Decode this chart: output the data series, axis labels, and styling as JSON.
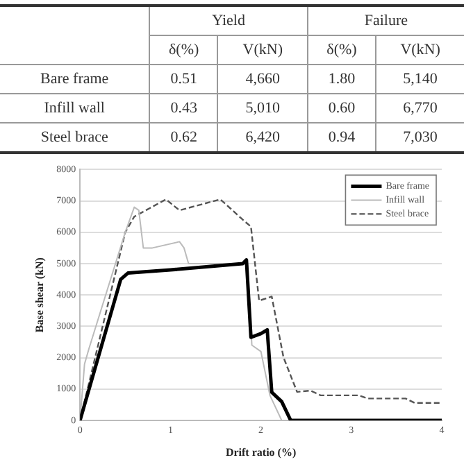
{
  "chart_data": {
    "type": "line",
    "xlabel": "Drift ratio (%)",
    "ylabel": "Base shear (kN)",
    "annotations": [
      "Yield",
      "Failure",
      "δ(%)",
      "V(kN)",
      "δ(%)",
      "V(kN)",
      "Bare frame",
      "0.51",
      "4,660",
      "1.80",
      "5,140",
      "Infill wall",
      "0.43",
      "5,010",
      "0.60",
      "6,770",
      "Steel brace",
      "0.62",
      "6,420",
      "0.94",
      "7,030"
    ],
    "xlim": [
      0,
      4
    ],
    "xticks": [
      0,
      1,
      2,
      3,
      4
    ],
    "ylim": [
      0,
      8000
    ],
    "yticks": [
      0,
      1000,
      2000,
      3000,
      4000,
      5000,
      6000,
      7000,
      8000
    ],
    "grid": "y",
    "legend": "top right",
    "marker": "none",
    "series": [
      {
        "name": "Bare frame",
        "color": "#000000",
        "line_style": "solid",
        "x": [
          0,
          0.45,
          0.53,
          1.0,
          1.8,
          1.84,
          1.89,
          2.0,
          2.07,
          2.12,
          2.23,
          2.33,
          4
        ],
        "values": [
          0,
          4500,
          4700,
          4800,
          5000,
          5120,
          2650,
          2770,
          2890,
          900,
          600,
          0,
          0
        ]
      },
      {
        "name": "Infill wall",
        "color": "#bbbbbb",
        "line_style": "solid",
        "x": [
          0,
          0.05,
          0.1,
          0.5,
          0.6,
          0.65,
          0.7,
          0.8,
          1.1,
          1.15,
          1.2,
          1.85,
          1.9,
          2.0,
          2.1,
          2.23,
          4
        ],
        "values": [
          0,
          1800,
          2300,
          6000,
          6800,
          6700,
          5500,
          5500,
          5700,
          5500,
          5000,
          5000,
          2400,
          2200,
          800,
          0,
          0
        ]
      },
      {
        "name": "Steel brace",
        "color": "#555555",
        "line_style": "dashed",
        "x": [
          0,
          0.5,
          0.6,
          0.95,
          1.1,
          1.55,
          1.61,
          1.8,
          1.89,
          1.98,
          2.12,
          2.25,
          2.4,
          2.55,
          2.66,
          3.08,
          3.18,
          3.6,
          3.7,
          4
        ],
        "values": [
          0,
          6000,
          6500,
          7050,
          6700,
          7050,
          6900,
          6400,
          6180,
          3820,
          3950,
          2010,
          910,
          950,
          800,
          800,
          700,
          700,
          560,
          560
        ]
      }
    ]
  }
}
